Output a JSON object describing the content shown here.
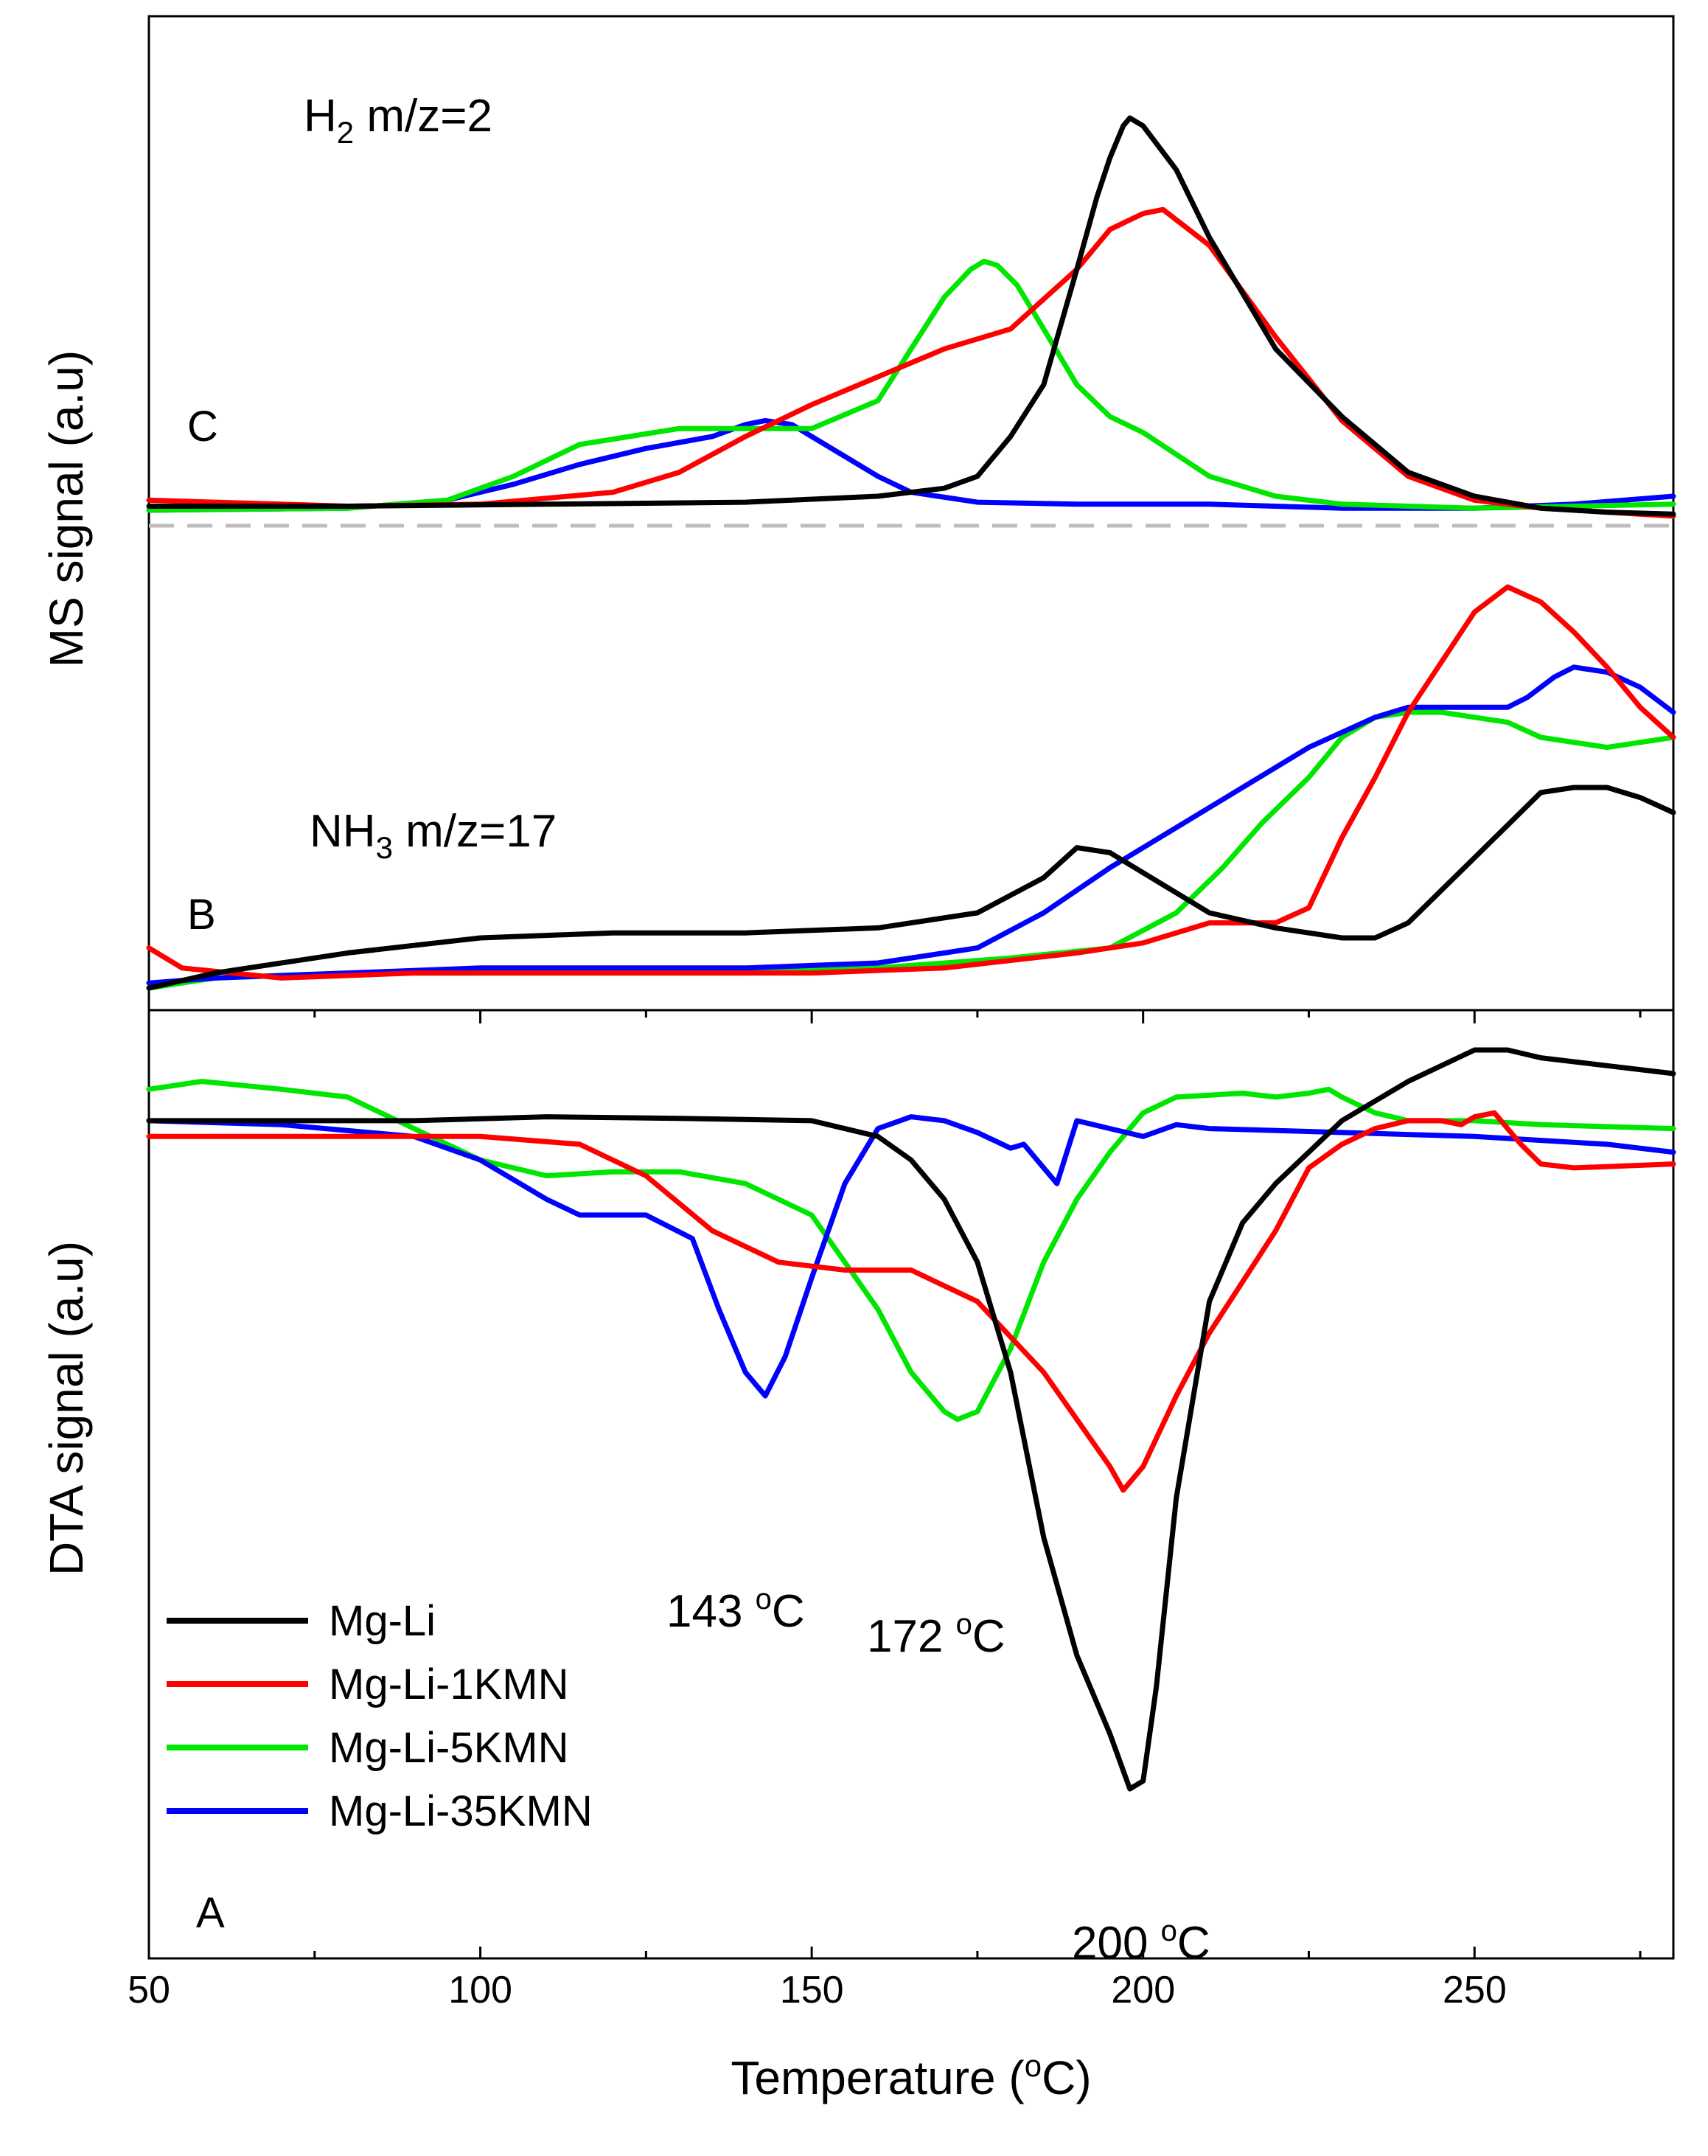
{
  "chart_data": {
    "type": "line",
    "title": "",
    "xlabel": "Temperature (oC)",
    "xlabel_prefix": "Temperature (",
    "xlabel_sup": "o",
    "xlabel_suffix": "C)",
    "xlim": [
      50,
      280
    ],
    "x_ticks": [
      50,
      100,
      150,
      200,
      250
    ],
    "x_tick_labels": [
      "50",
      "100",
      "150",
      "200",
      "250"
    ],
    "x_minor_ticks": [
      75,
      125,
      175,
      225,
      275
    ],
    "colors": {
      "Mg-Li": "#000000",
      "Mg-Li-1KMN": "#ff0000",
      "Mg-Li-5KMN": "#00e600",
      "Mg-Li-35KMN": "#0000ff",
      "baseline": "#bdbdbd"
    },
    "legend": [
      "Mg-Li",
      "Mg-Li-1KMN",
      "Mg-Li-5KMN",
      "Mg-Li-35KMN"
    ],
    "legend_position": "lower-left of DTA panel",
    "panels": [
      {
        "id": "MS",
        "ylabel": "MS signal (a.u)",
        "subplots": [
          {
            "letter": "C",
            "label_main": "H",
            "label_sub": "2",
            "label_rest": " m/z=2",
            "ylim": [
              0,
              1
            ],
            "series": [
              {
                "name": "Mg-Li",
                "x": [
                  50,
                  80,
                  110,
                  140,
                  160,
                  170,
                  175,
                  180,
                  185,
                  190,
                  193,
                  195,
                  197,
                  198,
                  200,
                  205,
                  210,
                  220,
                  230,
                  240,
                  250,
                  260,
                  270,
                  280
                ],
                "y": [
                  0.025,
                  0.025,
                  0.03,
                  0.035,
                  0.05,
                  0.07,
                  0.1,
                  0.2,
                  0.33,
                  0.62,
                  0.8,
                  0.9,
                  0.98,
                  1.0,
                  0.98,
                  0.87,
                  0.7,
                  0.42,
                  0.25,
                  0.11,
                  0.05,
                  0.02,
                  0.01,
                  0.005
                ]
              },
              {
                "name": "Mg-Li-1KMN",
                "x": [
                  50,
                  80,
                  100,
                  120,
                  130,
                  140,
                  150,
                  160,
                  170,
                  180,
                  190,
                  195,
                  200,
                  203,
                  210,
                  220,
                  230,
                  240,
                  250,
                  260,
                  270,
                  280
                ],
                "y": [
                  0.04,
                  0.025,
                  0.03,
                  0.06,
                  0.11,
                  0.2,
                  0.28,
                  0.35,
                  0.42,
                  0.47,
                  0.62,
                  0.72,
                  0.76,
                  0.77,
                  0.68,
                  0.45,
                  0.24,
                  0.1,
                  0.04,
                  0.02,
                  0.01,
                  0.0
                ]
              },
              {
                "name": "Mg-Li-5KMN",
                "x": [
                  50,
                  80,
                  95,
                  105,
                  115,
                  130,
                  150,
                  160,
                  165,
                  170,
                  174,
                  176,
                  178,
                  181,
                  185,
                  190,
                  195,
                  200,
                  210,
                  220,
                  230,
                  250,
                  280
                ],
                "y": [
                  0.015,
                  0.02,
                  0.04,
                  0.1,
                  0.18,
                  0.22,
                  0.22,
                  0.29,
                  0.42,
                  0.55,
                  0.62,
                  0.64,
                  0.63,
                  0.58,
                  0.47,
                  0.33,
                  0.25,
                  0.21,
                  0.1,
                  0.05,
                  0.03,
                  0.02,
                  0.03
                ]
              },
              {
                "name": "Mg-Li-35KMN",
                "x": [
                  50,
                  80,
                  95,
                  105,
                  115,
                  125,
                  135,
                  140,
                  143,
                  147,
                  150,
                  155,
                  160,
                  165,
                  175,
                  190,
                  210,
                  230,
                  250,
                  265,
                  280
                ],
                "y": [
                  0.015,
                  0.02,
                  0.04,
                  0.08,
                  0.13,
                  0.17,
                  0.2,
                  0.23,
                  0.24,
                  0.23,
                  0.2,
                  0.15,
                  0.1,
                  0.06,
                  0.035,
                  0.03,
                  0.03,
                  0.02,
                  0.02,
                  0.03,
                  0.05
                ]
              }
            ],
            "baseline_y": -0.05
          },
          {
            "letter": "B",
            "label_main": "NH",
            "label_sub": "3",
            "label_rest": " m/z=17",
            "ylim": [
              0,
              1
            ],
            "series": [
              {
                "name": "Mg-Li",
                "x": [
                  50,
                  60,
                  80,
                  100,
                  120,
                  140,
                  160,
                  175,
                  185,
                  190,
                  195,
                  200,
                  210,
                  220,
                  230,
                  235,
                  240,
                  250,
                  260,
                  265,
                  270,
                  275,
                  280
                ],
                "y": [
                  0.0,
                  0.03,
                  0.07,
                  0.1,
                  0.11,
                  0.11,
                  0.12,
                  0.15,
                  0.22,
                  0.28,
                  0.27,
                  0.23,
                  0.15,
                  0.12,
                  0.1,
                  0.1,
                  0.13,
                  0.26,
                  0.39,
                  0.4,
                  0.4,
                  0.38,
                  0.35
                ]
              },
              {
                "name": "Mg-Li-1KMN",
                "x": [
                  50,
                  55,
                  70,
                  90,
                  110,
                  130,
                  150,
                  170,
                  190,
                  200,
                  210,
                  220,
                  225,
                  230,
                  235,
                  240,
                  245,
                  250,
                  255,
                  260,
                  265,
                  270,
                  275,
                  280
                ],
                "y": [
                  0.08,
                  0.04,
                  0.02,
                  0.03,
                  0.03,
                  0.03,
                  0.03,
                  0.04,
                  0.07,
                  0.09,
                  0.13,
                  0.13,
                  0.16,
                  0.3,
                  0.42,
                  0.55,
                  0.65,
                  0.75,
                  0.8,
                  0.77,
                  0.71,
                  0.64,
                  0.56,
                  0.5
                ]
              },
              {
                "name": "Mg-Li-5KMN",
                "x": [
                  50,
                  60,
                  80,
                  100,
                  120,
                  140,
                  160,
                  180,
                  195,
                  205,
                  212,
                  218,
                  225,
                  230,
                  235,
                  240,
                  245,
                  250,
                  255,
                  260,
                  265,
                  270,
                  275,
                  280
                ],
                "y": [
                  0.0,
                  0.02,
                  0.03,
                  0.03,
                  0.03,
                  0.03,
                  0.04,
                  0.06,
                  0.08,
                  0.15,
                  0.24,
                  0.33,
                  0.42,
                  0.5,
                  0.54,
                  0.55,
                  0.55,
                  0.54,
                  0.53,
                  0.5,
                  0.49,
                  0.48,
                  0.49,
                  0.5
                ]
              },
              {
                "name": "Mg-Li-35KMN",
                "x": [
                  50,
                  60,
                  80,
                  100,
                  120,
                  140,
                  160,
                  175,
                  185,
                  195,
                  205,
                  215,
                  225,
                  235,
                  240,
                  245,
                  250,
                  255,
                  258,
                  262,
                  265,
                  270,
                  275,
                  280
                ],
                "y": [
                  0.01,
                  0.02,
                  0.03,
                  0.04,
                  0.04,
                  0.04,
                  0.05,
                  0.08,
                  0.15,
                  0.24,
                  0.32,
                  0.4,
                  0.48,
                  0.54,
                  0.56,
                  0.56,
                  0.56,
                  0.56,
                  0.58,
                  0.62,
                  0.64,
                  0.63,
                  0.6,
                  0.55
                ]
              }
            ]
          }
        ]
      },
      {
        "id": "DTA",
        "letter": "A",
        "ylabel": "DTA signal (a.u)",
        "ylim": [
          -1,
          0.12
        ],
        "series": [
          {
            "name": "Mg-Li",
            "x": [
              50,
              70,
              90,
              110,
              130,
              150,
              160,
              165,
              170,
              175,
              180,
              185,
              190,
              195,
              198,
              200,
              202,
              205,
              210,
              215,
              220,
              230,
              240,
              250,
              255,
              260,
              270,
              280
            ],
            "y": [
              0.0,
              0.0,
              0.0,
              0.005,
              0.003,
              0.0,
              -0.02,
              -0.05,
              -0.1,
              -0.18,
              -0.32,
              -0.53,
              -0.68,
              -0.78,
              -0.85,
              -0.84,
              -0.72,
              -0.48,
              -0.23,
              -0.13,
              -0.08,
              0.0,
              0.05,
              0.09,
              0.09,
              0.08,
              0.07,
              0.06
            ]
          },
          {
            "name": "Mg-Li-1KMN",
            "x": [
              50,
              80,
              100,
              115,
              125,
              135,
              145,
              155,
              165,
              175,
              185,
              190,
              195,
              197,
              200,
              205,
              210,
              220,
              225,
              230,
              235,
              240,
              245,
              248,
              250,
              253,
              255,
              257,
              260,
              265,
              280
            ],
            "y": [
              -0.02,
              -0.02,
              -0.02,
              -0.03,
              -0.07,
              -0.14,
              -0.18,
              -0.19,
              -0.19,
              -0.23,
              -0.32,
              -0.38,
              -0.44,
              -0.47,
              -0.44,
              -0.35,
              -0.27,
              -0.14,
              -0.06,
              -0.03,
              -0.01,
              0.0,
              0.0,
              -0.005,
              0.005,
              0.01,
              -0.01,
              -0.03,
              -0.055,
              -0.06,
              -0.055
            ]
          },
          {
            "name": "Mg-Li-5KMN",
            "x": [
              50,
              58,
              70,
              80,
              90,
              100,
              110,
              120,
              130,
              140,
              150,
              160,
              165,
              170,
              172,
              175,
              180,
              185,
              190,
              195,
              200,
              205,
              215,
              220,
              225,
              228,
              230,
              235,
              240,
              250,
              260,
              280
            ],
            "y": [
              0.04,
              0.05,
              0.04,
              0.03,
              -0.01,
              -0.05,
              -0.07,
              -0.065,
              -0.065,
              -0.08,
              -0.12,
              -0.24,
              -0.32,
              -0.37,
              -0.38,
              -0.37,
              -0.29,
              -0.18,
              -0.1,
              -0.04,
              0.01,
              0.03,
              0.035,
              0.03,
              0.035,
              0.04,
              0.03,
              0.01,
              0.0,
              0.0,
              -0.005,
              -0.01
            ]
          },
          {
            "name": "Mg-Li-35KMN",
            "x": [
              50,
              70,
              90,
              100,
              110,
              115,
              125,
              132,
              136,
              140,
              143,
              146,
              150,
              155,
              160,
              165,
              170,
              175,
              180,
              182,
              185,
              187,
              190,
              195,
              200,
              205,
              210,
              230,
              250,
              270,
              280
            ],
            "y": [
              0.0,
              -0.005,
              -0.02,
              -0.05,
              -0.1,
              -0.12,
              -0.12,
              -0.15,
              -0.24,
              -0.32,
              -0.35,
              -0.3,
              -0.2,
              -0.08,
              -0.01,
              0.005,
              0.0,
              -0.015,
              -0.035,
              -0.03,
              -0.06,
              -0.08,
              0.0,
              -0.01,
              -0.02,
              -0.005,
              -0.01,
              -0.015,
              -0.02,
              -0.03,
              -0.04
            ]
          }
        ]
      }
    ],
    "annotations": [
      {
        "text": "143 oC",
        "value": "143 ",
        "sup": "o",
        "unit": "C"
      },
      {
        "text": "172 oC",
        "value": "172 ",
        "sup": "o",
        "unit": "C"
      },
      {
        "text": "200 oC",
        "value": "200 ",
        "sup": "o",
        "unit": "C"
      }
    ]
  }
}
